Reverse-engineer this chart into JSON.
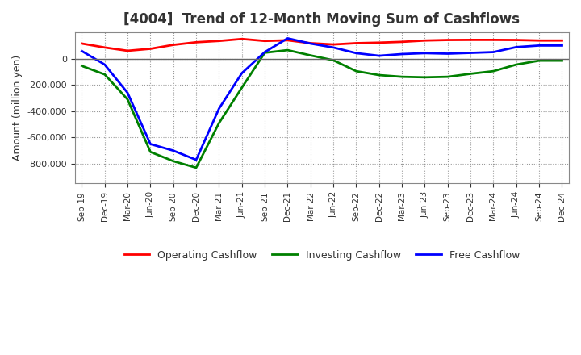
{
  "title": "[4004]  Trend of 12-Month Moving Sum of Cashflows",
  "ylabel": "Amount (million yen)",
  "background_color": "#ffffff",
  "grid_color": "#999999",
  "x_labels": [
    "Sep-19",
    "Dec-19",
    "Mar-20",
    "Jun-20",
    "Sep-20",
    "Dec-20",
    "Mar-21",
    "Jun-21",
    "Sep-21",
    "Dec-21",
    "Mar-22",
    "Jun-22",
    "Sep-22",
    "Dec-22",
    "Mar-23",
    "Jun-23",
    "Sep-23",
    "Dec-23",
    "Mar-24",
    "Jun-24",
    "Sep-24",
    "Dec-24"
  ],
  "operating_cashflow": [
    115000,
    85000,
    60000,
    75000,
    105000,
    125000,
    135000,
    150000,
    135000,
    140000,
    118000,
    108000,
    118000,
    122000,
    128000,
    138000,
    142000,
    143000,
    143000,
    142000,
    138000,
    138000
  ],
  "investing_cashflow": [
    -55000,
    -120000,
    -310000,
    -710000,
    -780000,
    -830000,
    -490000,
    -220000,
    45000,
    65000,
    25000,
    -12000,
    -95000,
    -125000,
    -138000,
    -142000,
    -138000,
    -115000,
    -95000,
    -45000,
    -15000,
    -15000
  ],
  "free_cashflow": [
    58000,
    -45000,
    -260000,
    -650000,
    -700000,
    -770000,
    -380000,
    -110000,
    50000,
    155000,
    115000,
    85000,
    42000,
    22000,
    35000,
    42000,
    38000,
    44000,
    50000,
    88000,
    100000,
    100000
  ],
  "operating_color": "#ff0000",
  "investing_color": "#008000",
  "free_color": "#0000ff",
  "ylim": [
    -950000,
    200000
  ],
  "yticks": [
    -800000,
    -600000,
    -400000,
    -200000,
    0
  ],
  "title_color": "#333333"
}
